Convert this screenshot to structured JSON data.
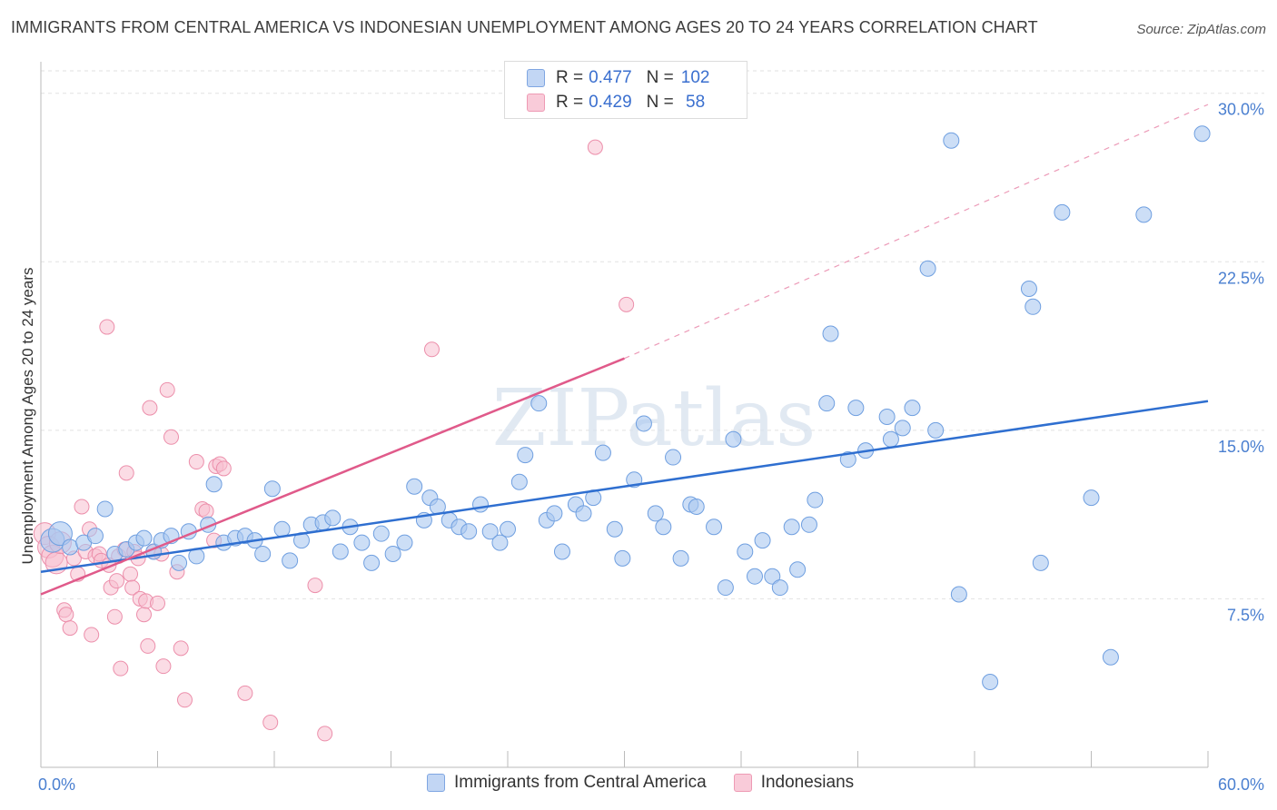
{
  "title": "IMMIGRANTS FROM CENTRAL AMERICA VS INDONESIAN UNEMPLOYMENT AMONG AGES 20 TO 24 YEARS CORRELATION CHART",
  "source": "Source: ZipAtlas.com",
  "watermark": "ZIPatlas",
  "colors": {
    "blue_fill": "#aac8f0",
    "blue_stroke": "#6f9fe0",
    "blue_line": "#2f6fd0",
    "pink_fill": "#f7bfd0",
    "pink_stroke": "#ec8fab",
    "pink_line": "#e05a8a",
    "grid": "#e2e2e2",
    "tick_text": "#4a7fd0"
  },
  "legend": {
    "series": [
      {
        "r_label": "R = ",
        "r_value": "0.477",
        "n_label": "N = ",
        "n_value": "102"
      },
      {
        "r_label": "R = ",
        "r_value": "0.429",
        "n_label": "N = ",
        "n_value": " 58"
      }
    ]
  },
  "bottom_legend": [
    "Immigrants from Central America",
    "Indonesians"
  ],
  "chart_data": {
    "type": "scatter",
    "title": "IMMIGRANTS FROM CENTRAL AMERICA VS INDONESIAN UNEMPLOYMENT AMONG AGES 20 TO 24 YEARS CORRELATION CHART",
    "xlabel": "",
    "ylabel": "Unemployment Among Ages 20 to 24 years",
    "xlim": [
      0,
      60
    ],
    "ylim": [
      0,
      31
    ],
    "x_tick_labels": [
      "0.0%",
      "60.0%"
    ],
    "y_ticks": [
      7.5,
      15.0,
      22.5,
      30.0
    ],
    "y_tick_labels": [
      "7.5%",
      "15.0%",
      "22.5%",
      "30.0%"
    ],
    "series": [
      {
        "name": "Immigrants from Central America",
        "r": 0.477,
        "n": 102,
        "trend": {
          "x0": 0,
          "y0": 8.7,
          "x1": 60,
          "y1": 16.3,
          "dashed_extension": false
        },
        "points": [
          [
            0.6,
            10.1
          ],
          [
            1.0,
            10.4
          ],
          [
            1.5,
            9.8
          ],
          [
            2.2,
            10.0
          ],
          [
            2.8,
            10.3
          ],
          [
            3.3,
            11.5
          ],
          [
            3.8,
            9.5
          ],
          [
            4.4,
            9.7
          ],
          [
            4.9,
            10.0
          ],
          [
            5.3,
            10.2
          ],
          [
            5.8,
            9.6
          ],
          [
            6.2,
            10.1
          ],
          [
            6.7,
            10.3
          ],
          [
            7.1,
            9.1
          ],
          [
            7.6,
            10.5
          ],
          [
            8.0,
            9.4
          ],
          [
            8.6,
            10.8
          ],
          [
            8.9,
            12.6
          ],
          [
            9.4,
            10.0
          ],
          [
            10.0,
            10.2
          ],
          [
            10.5,
            10.3
          ],
          [
            11.0,
            10.1
          ],
          [
            11.4,
            9.5
          ],
          [
            11.9,
            12.4
          ],
          [
            12.4,
            10.6
          ],
          [
            12.8,
            9.2
          ],
          [
            13.4,
            10.1
          ],
          [
            13.9,
            10.8
          ],
          [
            14.5,
            10.9
          ],
          [
            15.0,
            11.1
          ],
          [
            15.4,
            9.6
          ],
          [
            15.9,
            10.7
          ],
          [
            16.5,
            10.0
          ],
          [
            17.0,
            9.1
          ],
          [
            17.5,
            10.4
          ],
          [
            18.1,
            9.5
          ],
          [
            18.7,
            10.0
          ],
          [
            19.2,
            12.5
          ],
          [
            19.7,
            11.0
          ],
          [
            20.0,
            12.0
          ],
          [
            20.4,
            11.6
          ],
          [
            21.0,
            11.0
          ],
          [
            21.5,
            10.7
          ],
          [
            22.0,
            10.5
          ],
          [
            22.6,
            11.7
          ],
          [
            23.1,
            10.5
          ],
          [
            23.6,
            10.0
          ],
          [
            24.0,
            10.6
          ],
          [
            24.6,
            12.7
          ],
          [
            24.9,
            13.9
          ],
          [
            25.6,
            16.2
          ],
          [
            26.0,
            11.0
          ],
          [
            26.4,
            11.3
          ],
          [
            26.8,
            9.6
          ],
          [
            27.5,
            11.7
          ],
          [
            27.9,
            11.3
          ],
          [
            28.4,
            12.0
          ],
          [
            28.9,
            14.0
          ],
          [
            29.5,
            10.6
          ],
          [
            29.9,
            9.3
          ],
          [
            30.5,
            12.8
          ],
          [
            31.0,
            15.3
          ],
          [
            31.6,
            11.3
          ],
          [
            32.0,
            10.7
          ],
          [
            32.5,
            13.8
          ],
          [
            32.9,
            9.3
          ],
          [
            33.4,
            11.7
          ],
          [
            33.7,
            11.6
          ],
          [
            34.6,
            10.7
          ],
          [
            35.2,
            8.0
          ],
          [
            35.6,
            14.6
          ],
          [
            36.2,
            9.6
          ],
          [
            36.7,
            8.5
          ],
          [
            37.1,
            10.1
          ],
          [
            37.6,
            8.5
          ],
          [
            38.0,
            8.0
          ],
          [
            38.6,
            10.7
          ],
          [
            38.9,
            8.8
          ],
          [
            39.5,
            10.8
          ],
          [
            39.8,
            11.9
          ],
          [
            40.4,
            16.2
          ],
          [
            40.6,
            19.3
          ],
          [
            41.5,
            13.7
          ],
          [
            41.9,
            16.0
          ],
          [
            42.4,
            14.1
          ],
          [
            43.5,
            15.6
          ],
          [
            43.7,
            14.6
          ],
          [
            44.3,
            15.1
          ],
          [
            44.8,
            16.0
          ],
          [
            45.6,
            22.2
          ],
          [
            46.0,
            15.0
          ],
          [
            46.8,
            27.9
          ],
          [
            47.2,
            7.7
          ],
          [
            48.8,
            3.8
          ],
          [
            50.8,
            21.3
          ],
          [
            51.0,
            20.5
          ],
          [
            51.4,
            9.1
          ],
          [
            52.5,
            24.7
          ],
          [
            54.0,
            12.0
          ],
          [
            55.0,
            4.9
          ],
          [
            56.7,
            24.6
          ],
          [
            59.7,
            28.2
          ]
        ]
      },
      {
        "name": "Indonesians",
        "r": 0.429,
        "n": 58,
        "trend": {
          "x0": 0,
          "y0": 7.7,
          "x1": 30,
          "y1": 18.2,
          "dashed_extension": true,
          "dash_x1": 60,
          "dash_y1": 29.5
        },
        "points": [
          [
            0.2,
            10.4
          ],
          [
            0.4,
            9.8
          ],
          [
            0.6,
            9.4
          ],
          [
            0.8,
            9.1
          ],
          [
            1.0,
            10.0
          ],
          [
            1.2,
            7.0
          ],
          [
            1.3,
            6.8
          ],
          [
            1.5,
            6.2
          ],
          [
            1.7,
            9.3
          ],
          [
            1.9,
            8.6
          ],
          [
            2.1,
            11.6
          ],
          [
            2.3,
            9.6
          ],
          [
            2.5,
            10.6
          ],
          [
            2.6,
            5.9
          ],
          [
            2.8,
            9.4
          ],
          [
            3.0,
            9.5
          ],
          [
            3.1,
            9.2
          ],
          [
            3.4,
            19.6
          ],
          [
            3.5,
            9.0
          ],
          [
            3.6,
            8.0
          ],
          [
            3.8,
            6.7
          ],
          [
            3.9,
            8.3
          ],
          [
            4.0,
            9.4
          ],
          [
            4.1,
            4.4
          ],
          [
            4.3,
            9.7
          ],
          [
            4.4,
            13.1
          ],
          [
            4.6,
            8.6
          ],
          [
            4.7,
            8.0
          ],
          [
            4.8,
            9.6
          ],
          [
            5.0,
            9.3
          ],
          [
            5.1,
            7.5
          ],
          [
            5.3,
            6.8
          ],
          [
            5.4,
            7.4
          ],
          [
            5.5,
            5.4
          ],
          [
            5.6,
            16.0
          ],
          [
            5.8,
            9.6
          ],
          [
            6.0,
            7.3
          ],
          [
            6.2,
            9.5
          ],
          [
            6.3,
            4.5
          ],
          [
            6.5,
            16.8
          ],
          [
            6.7,
            14.7
          ],
          [
            7.0,
            8.7
          ],
          [
            7.2,
            5.3
          ],
          [
            7.4,
            3.0
          ],
          [
            8.0,
            13.6
          ],
          [
            8.3,
            11.5
          ],
          [
            8.5,
            11.4
          ],
          [
            8.9,
            10.1
          ],
          [
            9.0,
            13.4
          ],
          [
            9.2,
            13.5
          ],
          [
            9.4,
            13.3
          ],
          [
            10.5,
            3.3
          ],
          [
            11.8,
            2.0
          ],
          [
            14.1,
            8.1
          ],
          [
            14.6,
            1.5
          ],
          [
            20.1,
            18.6
          ],
          [
            28.5,
            27.6
          ],
          [
            30.1,
            20.6
          ]
        ]
      }
    ]
  }
}
